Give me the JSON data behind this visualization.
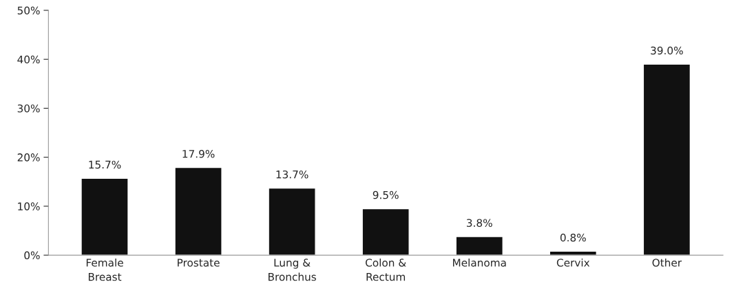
{
  "chart_data": {
    "type": "bar",
    "categories": [
      "Female\nBreast",
      "Prostate",
      "Lung &\nBronchus",
      "Colon &\nRectum",
      "Melanoma",
      "Cervix",
      "Other"
    ],
    "values": [
      15.7,
      17.9,
      13.7,
      9.5,
      3.8,
      0.8,
      39.0
    ],
    "value_labels": [
      "15.7%",
      "17.9%",
      "13.7%",
      "9.5%",
      "3.8%",
      "0.8%",
      "39.0%"
    ],
    "color": "#111111",
    "ylim": [
      0,
      50
    ],
    "yticks": [
      {
        "value": 0,
        "label": "0%"
      },
      {
        "value": 10,
        "label": "10%"
      },
      {
        "value": 20,
        "label": "20%"
      },
      {
        "value": 30,
        "label": "30%"
      },
      {
        "value": 40,
        "label": "40%"
      },
      {
        "value": 50,
        "label": "50%"
      }
    ],
    "grid": false,
    "legend": false
  }
}
